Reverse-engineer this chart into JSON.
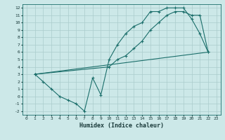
{
  "xlabel": "Humidex (Indice chaleur)",
  "bg_color": "#cce8e8",
  "grid_color": "#aacccc",
  "line_color": "#1a6e6a",
  "xlim": [
    -0.5,
    23.5
  ],
  "ylim": [
    -2.5,
    12.5
  ],
  "xticks": [
    0,
    1,
    2,
    3,
    4,
    5,
    6,
    7,
    8,
    9,
    10,
    11,
    12,
    13,
    14,
    15,
    16,
    17,
    18,
    19,
    20,
    21,
    22,
    23
  ],
  "yticks": [
    -2,
    -1,
    0,
    1,
    2,
    3,
    4,
    5,
    6,
    7,
    8,
    9,
    10,
    11,
    12
  ],
  "line1_x": [
    1,
    2,
    3,
    4,
    5,
    6,
    7,
    8,
    9,
    10,
    11,
    12,
    13,
    14,
    15,
    16,
    17,
    18,
    19,
    20,
    21,
    22
  ],
  "line1_y": [
    3,
    2,
    1,
    0,
    -0.5,
    -1,
    -2,
    2.5,
    0.2,
    5,
    7,
    8.5,
    9.5,
    10,
    11.5,
    11.5,
    12,
    12,
    12,
    10.5,
    8.5,
    6
  ],
  "line2_x": [
    1,
    10,
    11,
    12,
    13,
    14,
    15,
    16,
    17,
    18,
    19,
    20,
    21,
    22
  ],
  "line2_y": [
    3,
    4,
    5,
    5.5,
    6.5,
    7.5,
    9,
    10,
    11,
    11.5,
    11.5,
    11,
    11,
    6
  ],
  "line3_x": [
    1,
    22
  ],
  "line3_y": [
    3,
    6
  ]
}
